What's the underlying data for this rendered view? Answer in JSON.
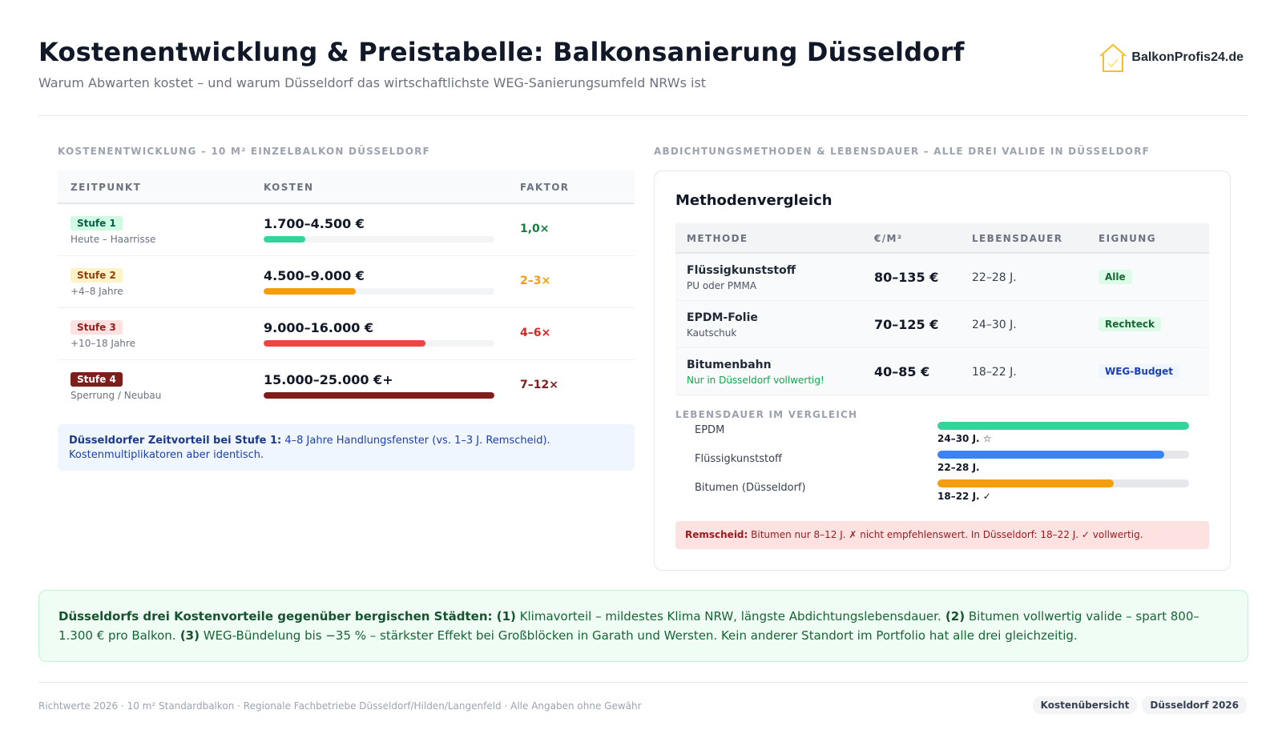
{
  "header": {
    "title": "Kostenentwicklung & Preistabelle: Balkonsanierung Düsseldorf",
    "subtitle": "Warum Abwarten kostet – und warum Düsseldorf das wirtschaftlichste WEG-Sanierungsumfeld NRWs ist",
    "logo_text": "BalkonProfis24.de",
    "logo_icon": "house-check-icon"
  },
  "cost_section": {
    "label": "KOSTENENTWICKLUNG – 10 M² EINZELBALKON DÜSSELDORF",
    "columns": [
      "ZEITPUNKT",
      "KOSTEN",
      "FAKTOR"
    ],
    "rows": [
      {
        "stage": "Stufe 1",
        "when": "Heute – Haarrisse",
        "cost": "1.700–4.500 €",
        "factor": "1,0×",
        "level": 0.18,
        "color": "#34d399",
        "badge_bg": "#d1fae5",
        "badge_fg": "#065f46",
        "factor_color": "#15803d"
      },
      {
        "stage": "Stufe 2",
        "when": "+4–8 Jahre",
        "cost": "4.500–9.000 €",
        "factor": "2–3×",
        "level": 0.4,
        "color": "#f59e0b",
        "badge_bg": "#fef3c7",
        "badge_fg": "#92400e",
        "factor_color": "#f59e0b"
      },
      {
        "stage": "Stufe 3",
        "when": "+10–18 Jahre",
        "cost": "9.000–16.000 €",
        "factor": "4–6×",
        "level": 0.7,
        "color": "#ef4444",
        "badge_bg": "#fee2e2",
        "badge_fg": "#991b1b",
        "factor_color": "#dc2626"
      },
      {
        "stage": "Stufe 4",
        "when": "Sperrung / Neubau",
        "cost": "15.000–25.000 €+",
        "factor": "7–12×",
        "level": 1.0,
        "color": "#7f1d1d",
        "badge_bg": "#7f1d1d",
        "badge_fg": "#ffffff",
        "factor_color": "#7f1d1d"
      }
    ],
    "note_bold": "Düsseldorfer Zeitvorteil bei Stufe 1:",
    "note_text": " 4–8 Jahre Handlungsfenster (vs. 1–3 J. Remscheid). Kostenmultiplikatoren aber identisch."
  },
  "methods_section": {
    "label": "ABDICHTUNGSMETHODEN & LEBENSDAUER – ALLE DREI VALIDE IN DÜSSELDORF",
    "card_title": "Methodenvergleich",
    "columns": [
      "METHODE",
      "€/M²",
      "LEBENSDAUER",
      "EIGNUNG"
    ],
    "rows": [
      {
        "name": "Flüssigkunststoff",
        "sub": "PU oder PMMA",
        "sub_color": "#4b5563",
        "price": "80–135 €",
        "life": "22–28 J.",
        "badge": "Alle",
        "badge_bg": "#dcfce7",
        "badge_fg": "#166534"
      },
      {
        "name": "EPDM-Folie",
        "sub": "Kautschuk",
        "sub_color": "#4b5563",
        "price": "70–125 €",
        "life": "24–30 J.",
        "badge": "Rechteck",
        "badge_bg": "#dcfce7",
        "badge_fg": "#166534"
      },
      {
        "name": "Bitumenbahn",
        "sub": "Nur in Düsseldorf vollwertig!",
        "sub_color": "#16a34a",
        "price": "40–85 €",
        "life": "18–22 J.",
        "badge": "WEG-Budget",
        "badge_bg": "#eff6ff",
        "badge_fg": "#1e40af"
      }
    ],
    "lifespan_label": "LEBENSDAUER IM VERGLEICH",
    "lifespan": [
      {
        "name": "EPDM",
        "value": "24–30 J. ☆",
        "level": 1.0,
        "color": "#34d399"
      },
      {
        "name": "Flüssigkunststoff",
        "value": "22–28 J.",
        "level": 0.9,
        "color": "#3b82f6"
      },
      {
        "name": "Bitumen (Düsseldorf)",
        "value": "18–22 J. ✓",
        "level": 0.7,
        "color": "#f59e0b"
      }
    ],
    "warning_bold": "Remscheid:",
    "warning_text": " Bitumen nur 8–12 J. ✗ nicht empfehlenswert. In Düsseldorf: 18–22 J. ✓ vollwertig."
  },
  "summary": {
    "lead": "Düsseldorfs drei Kostenvorteile gegenüber bergischen Städten:",
    "n1": " (1)",
    "t1": " Klimavorteil – mildestes Klima NRW, längste Abdichtungslebensdauer.",
    "n2": " (2)",
    "t2": " Bitumen vollwertig valide – spart 800–1.300 € pro Balkon.",
    "n3": " (3)",
    "t3": " WEG-Bündelung bis −35 % – stärkster Effekt bei Großblöcken in Garath und Wersten. Kein anderer Standort im Portfolio hat alle drei gleichzeitig."
  },
  "footer": {
    "text": "Richtwerte 2026 · 10 m² Standardbalkon · Regionale Fachbetriebe Düsseldorf/Hilden/Langenfeld · Alle Angaben ohne Gewähr",
    "tags": [
      "Kostenübersicht",
      "Düsseldorf 2026"
    ]
  }
}
